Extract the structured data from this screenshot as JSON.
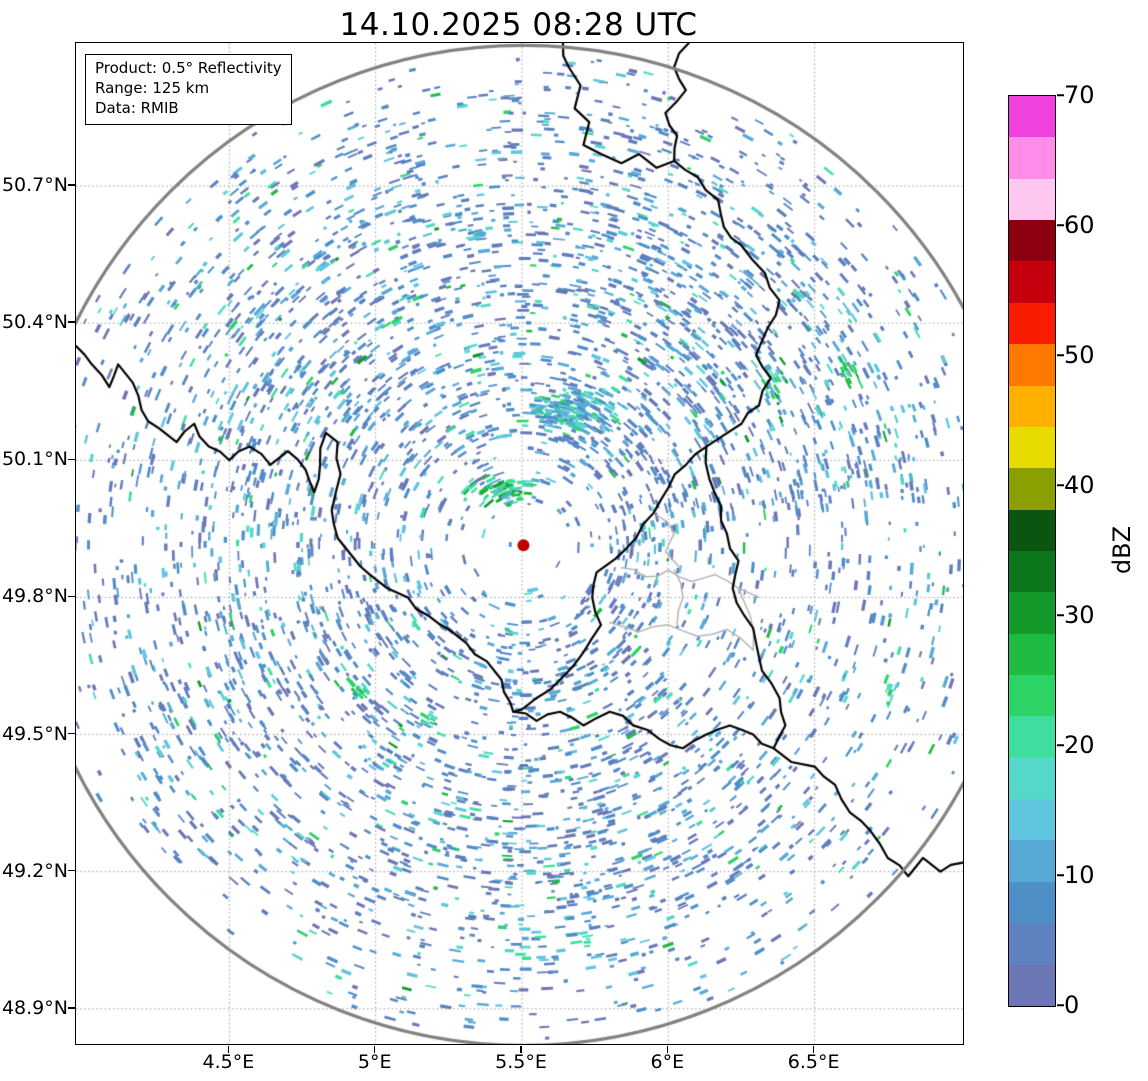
{
  "title": "14.10.2025 08:28 UTC",
  "info_box": {
    "lines": [
      "Product: 0.5° Reflectivity",
      "Range: 125 km",
      "Data: RMIB"
    ]
  },
  "chart_data": {
    "type": "heatmap",
    "subtype": "weather-radar-ppi",
    "title": "14.10.2025 08:28 UTC",
    "product": "0.5° Reflectivity",
    "data_source": "RMIB",
    "extent": {
      "lon_min": 3.976,
      "lon_max": 7.007,
      "lat_min": 48.823,
      "lat_max": 51.013
    },
    "x_ticks": {
      "values": [
        4.5,
        5.0,
        5.5,
        6.0,
        6.5
      ],
      "labels": [
        "4.5°E",
        "5°E",
        "5.5°E",
        "6°E",
        "6.5°E"
      ]
    },
    "y_ticks": {
      "values": [
        50.7,
        50.4,
        50.1,
        49.8,
        49.5,
        49.2,
        48.9
      ],
      "labels": [
        "50.7°N",
        "50.4°N",
        "50.1°N",
        "49.8°N",
        "49.5°N",
        "49.2°N",
        "48.9°N"
      ]
    },
    "grid": true,
    "radar": {
      "lon": 5.505,
      "lat": 49.914,
      "dot_color": "#bb0000"
    },
    "range_ring": {
      "radius_km": 125,
      "color": "#828282",
      "width": 3.2
    },
    "colorbar": {
      "label": "dBZ",
      "vmin": 0,
      "vmax": 70,
      "tick_values": [
        0,
        10,
        20,
        30,
        40,
        50,
        60,
        70
      ],
      "colors": [
        "#6d76b5",
        "#5e82c0",
        "#4f8fc8",
        "#57aad6",
        "#60c5df",
        "#55d8ca",
        "#3edf9e",
        "#2bd464",
        "#1ebc41",
        "#14992b",
        "#0d771c",
        "#0a5510",
        "#8aa000",
        "#e6dc00",
        "#ffb000",
        "#ff7800",
        "#f91c00",
        "#c4000e",
        "#8c0010",
        "#ffc8f0",
        "#ff8ce8",
        "#f041de"
      ]
    },
    "borders": {
      "country_color": "#000000",
      "district_color": "#b4b4b4",
      "country": [
        [
          [
            3.976,
            50.35
          ],
          [
            4.03,
            50.31
          ],
          [
            4.09,
            50.26
          ],
          [
            4.12,
            50.31
          ],
          [
            4.17,
            50.27
          ],
          [
            4.2,
            50.21
          ],
          [
            4.26,
            50.17
          ],
          [
            4.32,
            50.14
          ],
          [
            4.38,
            50.18
          ],
          [
            4.43,
            50.13
          ],
          [
            4.5,
            50.1
          ],
          [
            4.57,
            50.13
          ],
          [
            4.64,
            50.09
          ],
          [
            4.7,
            50.12
          ],
          [
            4.76,
            50.08
          ],
          [
            4.79,
            50.03
          ],
          [
            4.81,
            50.09
          ],
          [
            4.83,
            50.16
          ],
          [
            4.87,
            50.14
          ],
          [
            4.88,
            50.07
          ],
          [
            4.85,
            49.99
          ],
          [
            4.87,
            49.93
          ],
          [
            4.92,
            49.89
          ],
          [
            4.98,
            49.85
          ],
          [
            5.04,
            49.82
          ],
          [
            5.11,
            49.8
          ],
          [
            5.18,
            49.76
          ],
          [
            5.25,
            49.73
          ],
          [
            5.31,
            49.7
          ],
          [
            5.38,
            49.66
          ],
          [
            5.43,
            49.62
          ],
          [
            5.46,
            49.57
          ],
          [
            5.47,
            49.55
          ],
          [
            5.55,
            49.53
          ],
          [
            5.63,
            49.55
          ],
          [
            5.71,
            49.52
          ],
          [
            5.8,
            49.55
          ],
          [
            5.88,
            49.52
          ],
          [
            5.97,
            49.49
          ],
          [
            6.05,
            49.47
          ],
          [
            6.13,
            49.5
          ],
          [
            6.21,
            49.52
          ],
          [
            6.29,
            49.5
          ],
          [
            6.36,
            49.47
          ],
          [
            6.42,
            49.44
          ],
          [
            6.5,
            49.43
          ],
          [
            6.57,
            49.39
          ],
          [
            6.62,
            49.33
          ],
          [
            6.69,
            49.29
          ],
          [
            6.75,
            49.23
          ],
          [
            6.82,
            49.19
          ],
          [
            6.87,
            49.23
          ],
          [
            6.93,
            49.2
          ],
          [
            7.007,
            49.22
          ]
        ],
        [
          [
            5.64,
            51.013
          ],
          [
            5.66,
            50.96
          ],
          [
            5.7,
            50.92
          ],
          [
            5.68,
            50.87
          ],
          [
            5.73,
            50.84
          ],
          [
            5.71,
            50.79
          ],
          [
            5.77,
            50.77
          ],
          [
            5.84,
            50.75
          ],
          [
            5.9,
            50.77
          ],
          [
            5.96,
            50.74
          ],
          [
            6.02,
            50.755
          ],
          [
            6.03,
            50.81
          ],
          [
            5.99,
            50.86
          ],
          [
            6.06,
            50.91
          ],
          [
            6.02,
            50.96
          ],
          [
            6.07,
            51.013
          ]
        ],
        [
          [
            6.02,
            50.755
          ],
          [
            6.1,
            50.72
          ],
          [
            6.17,
            50.67
          ],
          [
            6.19,
            50.61
          ],
          [
            6.25,
            50.57
          ],
          [
            6.33,
            50.51
          ],
          [
            6.38,
            50.45
          ],
          [
            6.34,
            50.39
          ],
          [
            6.3,
            50.33
          ],
          [
            6.35,
            50.28
          ],
          [
            6.31,
            50.22
          ],
          [
            6.25,
            50.18
          ],
          [
            6.19,
            50.155
          ],
          [
            6.13,
            50.13
          ],
          [
            6.14,
            50.06
          ],
          [
            6.18,
            50.0
          ],
          [
            6.2,
            49.94
          ],
          [
            6.24,
            49.88
          ],
          [
            6.22,
            49.82
          ],
          [
            6.26,
            49.76
          ],
          [
            6.3,
            49.7
          ],
          [
            6.32,
            49.64
          ],
          [
            6.38,
            49.58
          ],
          [
            6.4,
            49.52
          ],
          [
            6.36,
            49.47
          ]
        ],
        [
          [
            6.13,
            50.13
          ],
          [
            6.06,
            50.09
          ],
          [
            6.0,
            50.04
          ],
          [
            5.95,
            49.985
          ],
          [
            5.89,
            49.93
          ],
          [
            5.82,
            49.885
          ],
          [
            5.755,
            49.855
          ],
          [
            5.74,
            49.8
          ],
          [
            5.77,
            49.74
          ],
          [
            5.71,
            49.68
          ],
          [
            5.63,
            49.62
          ],
          [
            5.55,
            49.58
          ],
          [
            5.5,
            49.555
          ],
          [
            5.47,
            49.55
          ]
        ]
      ],
      "district": [
        [
          [
            5.96,
            49.98
          ],
          [
            6.02,
            49.94
          ],
          [
            5.99,
            49.9
          ],
          [
            6.04,
            49.865
          ]
        ],
        [
          [
            5.84,
            49.865
          ],
          [
            5.92,
            49.845
          ],
          [
            6.0,
            49.86
          ],
          [
            6.08,
            49.835
          ],
          [
            6.16,
            49.85
          ],
          [
            6.24,
            49.82
          ],
          [
            6.31,
            49.8
          ]
        ],
        [
          [
            5.8,
            49.745
          ],
          [
            5.9,
            49.725
          ],
          [
            6.0,
            49.74
          ],
          [
            6.1,
            49.715
          ],
          [
            6.2,
            49.73
          ],
          [
            6.29,
            49.685
          ]
        ],
        [
          [
            6.02,
            49.86
          ],
          [
            6.05,
            49.8
          ],
          [
            6.03,
            49.74
          ]
        ],
        [
          [
            6.24,
            49.82
          ],
          [
            6.28,
            49.76
          ],
          [
            6.29,
            49.685
          ]
        ]
      ]
    },
    "echoes": {
      "seed": 20251014,
      "attempts": 9500,
      "note": "scattered low-reflectivity clutter echoes (mostly 0-15 dBZ) arranged radially around the radar inside the 125 km ring, with a few 15-30 dBZ teal/green patches",
      "palette": [
        {
          "c": "#6d76b5",
          "w": 0.2
        },
        {
          "c": "#5d7fbe",
          "w": 0.26
        },
        {
          "c": "#4e8ec9",
          "w": 0.22
        },
        {
          "c": "#57aad6",
          "w": 0.14
        },
        {
          "c": "#60c5df",
          "w": 0.08
        },
        {
          "c": "#55d8ca",
          "w": 0.05
        },
        {
          "c": "#3edf9e",
          "w": 0.02
        },
        {
          "c": "#2bd464",
          "w": 0.015
        },
        {
          "c": "#1ebc41",
          "w": 0.01
        },
        {
          "c": "#14992b",
          "w": 0.005
        }
      ],
      "clusters": [
        {
          "lon": 5.69,
          "lat": 50.21,
          "dlon": 0.17,
          "dlat": 0.055,
          "count": 170,
          "palette": [
            "#4e8ec9",
            "#57aad6",
            "#60c5df",
            "#55d8ca",
            "#3edf9e",
            "#2bd464",
            "#5d7fbe",
            "#57aad6"
          ]
        },
        {
          "lon": 5.44,
          "lat": 50.03,
          "dlon": 0.15,
          "dlat": 0.035,
          "count": 70,
          "palette": [
            "#2bd464",
            "#1ebc41",
            "#14992b",
            "#55d8ca",
            "#57aad6",
            "#3edf9e"
          ]
        },
        {
          "lon": 6.35,
          "lat": 50.25,
          "dlon": 0.06,
          "dlat": 0.09,
          "count": 30,
          "palette": [
            "#2bd464",
            "#55d8ca",
            "#14992b",
            "#57aad6"
          ]
        },
        {
          "lon": 6.62,
          "lat": 50.3,
          "dlon": 0.035,
          "dlat": 0.05,
          "count": 14,
          "palette": [
            "#2bd464",
            "#55d8ca",
            "#1ebc41"
          ]
        },
        {
          "lon": 4.95,
          "lat": 49.6,
          "dlon": 0.05,
          "dlat": 0.03,
          "count": 15,
          "palette": [
            "#2bd464",
            "#55d8ca",
            "#1ebc41"
          ]
        },
        {
          "lon": 5.18,
          "lat": 49.53,
          "dlon": 0.04,
          "dlat": 0.025,
          "count": 10,
          "palette": [
            "#55d8ca",
            "#2bd464"
          ]
        },
        {
          "lon": 6.76,
          "lat": 49.6,
          "dlon": 0.03,
          "dlat": 0.05,
          "count": 10,
          "palette": [
            "#2bd464",
            "#55d8ca"
          ]
        },
        {
          "lon": 5.7,
          "lat": 49.05,
          "dlon": 0.05,
          "dlat": 0.02,
          "count": 8,
          "palette": [
            "#55d8ca",
            "#3edf9e"
          ]
        },
        {
          "lon": 5.36,
          "lat": 50.6,
          "dlon": 0.05,
          "dlat": 0.02,
          "count": 8,
          "palette": [
            "#55d8ca",
            "#57aad6"
          ]
        }
      ]
    }
  }
}
